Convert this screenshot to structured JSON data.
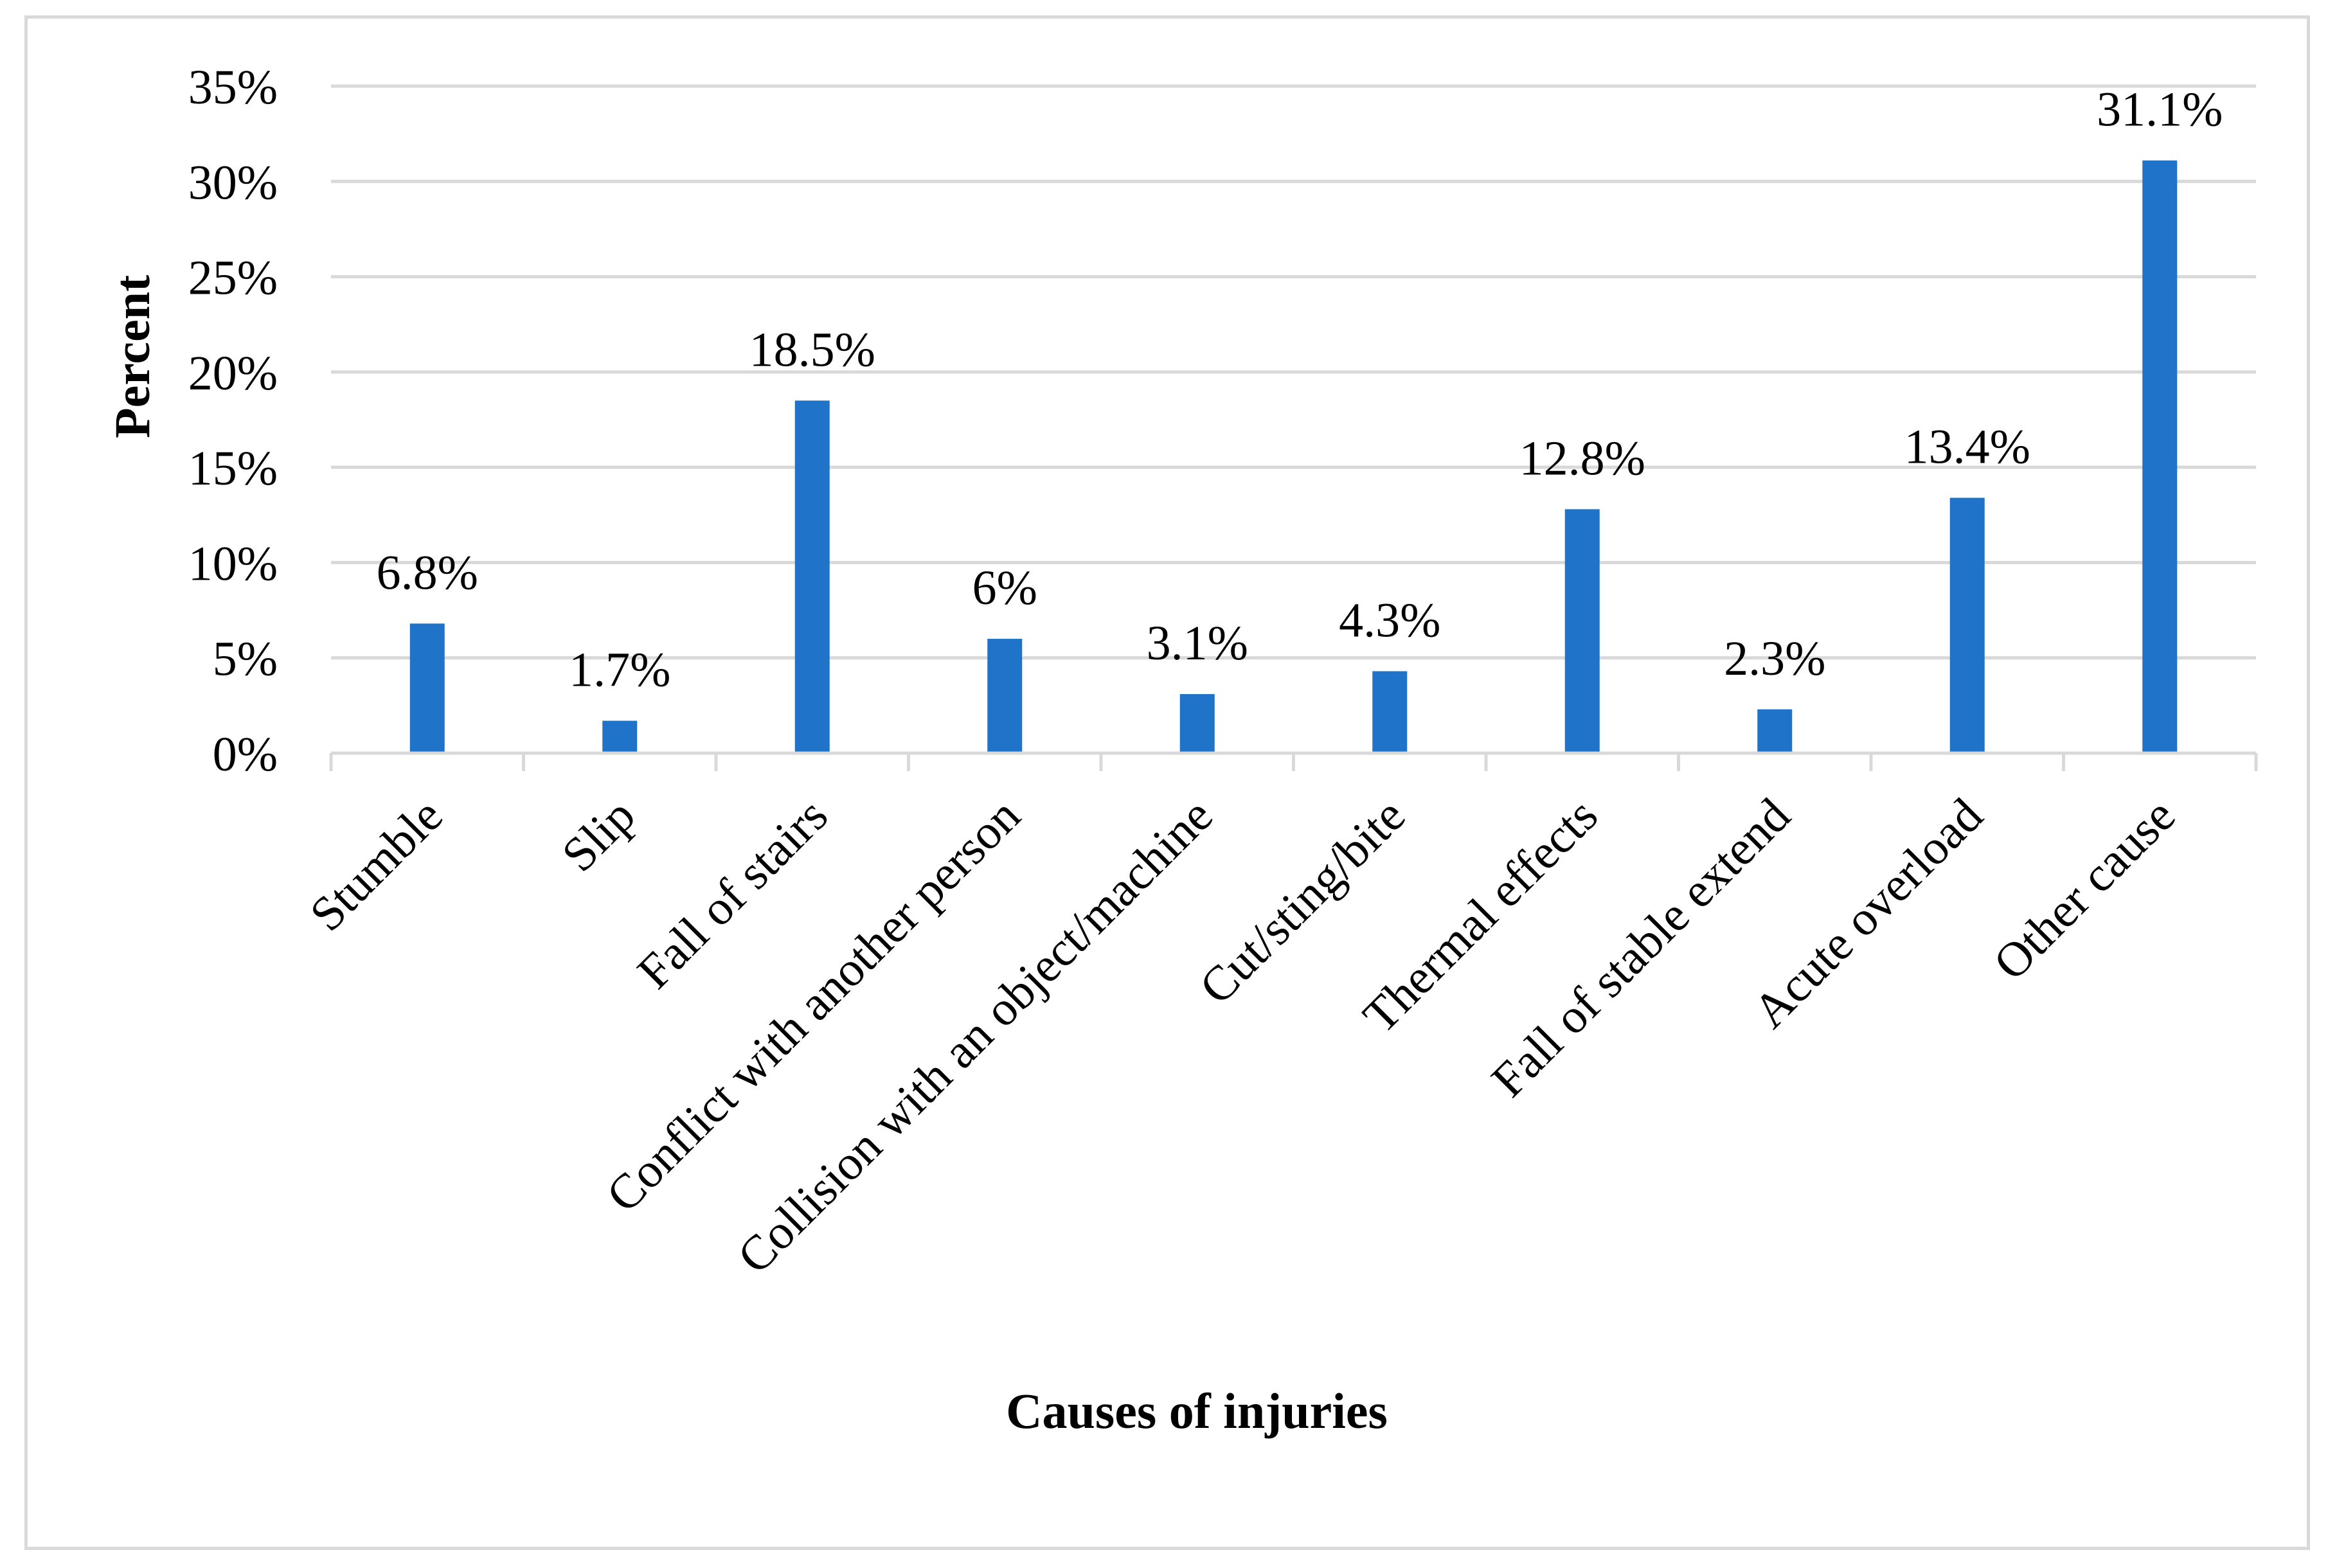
{
  "chart_data": {
    "type": "bar",
    "title": "",
    "xlabel": "Causes of injuries",
    "ylabel": "Percent",
    "ylim": [
      0,
      35
    ],
    "y_ticks": [
      "0%",
      "5%",
      "10%",
      "15%",
      "20%",
      "25%",
      "30%",
      "35%"
    ],
    "y_tick_values": [
      0,
      5,
      10,
      15,
      20,
      25,
      30,
      35
    ],
    "grid": true,
    "legend": "none",
    "bar_color": "#1f74c9",
    "categories": [
      "Stumble",
      "Slip",
      "Fall of stairs",
      "Conflict with another person",
      "Collision with an object/machine",
      "Cut/sting/bite",
      "Thermal effects",
      "Fall of stable extend",
      "Acute overload",
      "Other cause"
    ],
    "values": [
      6.8,
      1.7,
      18.5,
      6.0,
      3.1,
      4.3,
      12.8,
      2.3,
      13.4,
      31.1
    ],
    "data_labels": [
      "6.8%",
      "1.7%",
      "18.5%",
      "6%",
      "3.1%",
      "4.3%",
      "12.8%",
      "2.3%",
      "13.4%",
      "31.1%"
    ]
  }
}
